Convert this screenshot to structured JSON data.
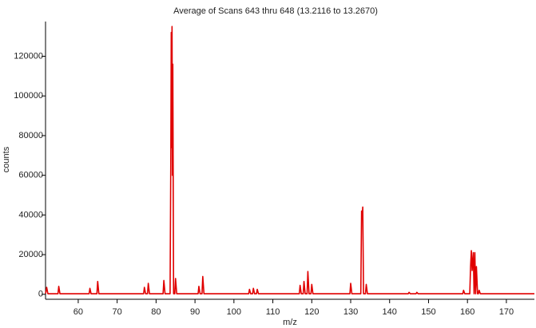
{
  "chart_data": {
    "type": "line",
    "title": "Average of Scans 643 thru 648 (13.2116 to 13.2670)",
    "x_label": "m/z",
    "y_label": "counts",
    "xlim": [
      51.6,
      177.2
    ],
    "ylim": [
      -2500,
      137500
    ],
    "xticks": [
      60,
      70,
      80,
      90,
      100,
      110,
      120,
      130,
      140,
      150,
      160,
      170
    ],
    "yticks": [
      0,
      20000,
      40000,
      60000,
      80000,
      100000,
      120000
    ],
    "grid": false,
    "x": [
      51.6,
      51.9,
      52.2,
      54.8,
      55,
      55.3,
      62.8,
      63,
      63.3,
      64.8,
      65,
      65.3,
      76.8,
      77,
      77.3,
      77.8,
      78,
      78.3,
      81.8,
      82,
      82.3,
      83.6,
      83.8,
      83.9,
      84,
      84.1,
      84.2,
      84.3,
      84.5,
      84.8,
      85,
      85.3,
      90.8,
      91,
      91.3,
      91.8,
      92,
      92.3,
      103.8,
      104,
      104.3,
      104.8,
      105,
      105.3,
      105.8,
      106,
      106.3,
      116.8,
      117,
      117.3,
      117.8,
      118,
      118.3,
      118.8,
      119,
      119.3,
      119.8,
      120,
      120.3,
      129.8,
      130,
      130.3,
      132.6,
      132.8,
      132.95,
      133.1,
      133.3,
      133.8,
      134,
      134.3,
      144.8,
      145,
      145.3,
      146.8,
      147,
      147.3,
      158.8,
      159,
      159.3,
      160.6,
      160.8,
      161,
      161.2,
      161.5,
      161.7,
      161.9,
      162.1,
      162.3,
      162.6,
      162.8,
      163,
      163.3,
      177.2
    ],
    "series": [
      {
        "name": "counts",
        "color": "#e00000",
        "values": [
          300,
          3500,
          300,
          300,
          4000,
          300,
          300,
          3000,
          300,
          300,
          6500,
          300,
          300,
          3500,
          300,
          300,
          5500,
          300,
          300,
          7000,
          300,
          300,
          75000,
          132000,
          74000,
          135000,
          60000,
          116000,
          300,
          300,
          8000,
          300,
          300,
          4000,
          300,
          300,
          9000,
          300,
          300,
          2500,
          300,
          300,
          3000,
          300,
          300,
          2500,
          300,
          300,
          4500,
          300,
          300,
          6500,
          300,
          300,
          11500,
          300,
          300,
          5000,
          300,
          300,
          5500,
          300,
          300,
          42000,
          38000,
          44000,
          300,
          300,
          5000,
          300,
          300,
          1000,
          300,
          300,
          1000,
          300,
          300,
          2000,
          300,
          300,
          14000,
          22000,
          12000,
          21000,
          300,
          21000,
          300,
          14000,
          300,
          300,
          2000,
          300,
          300
        ]
      }
    ]
  }
}
